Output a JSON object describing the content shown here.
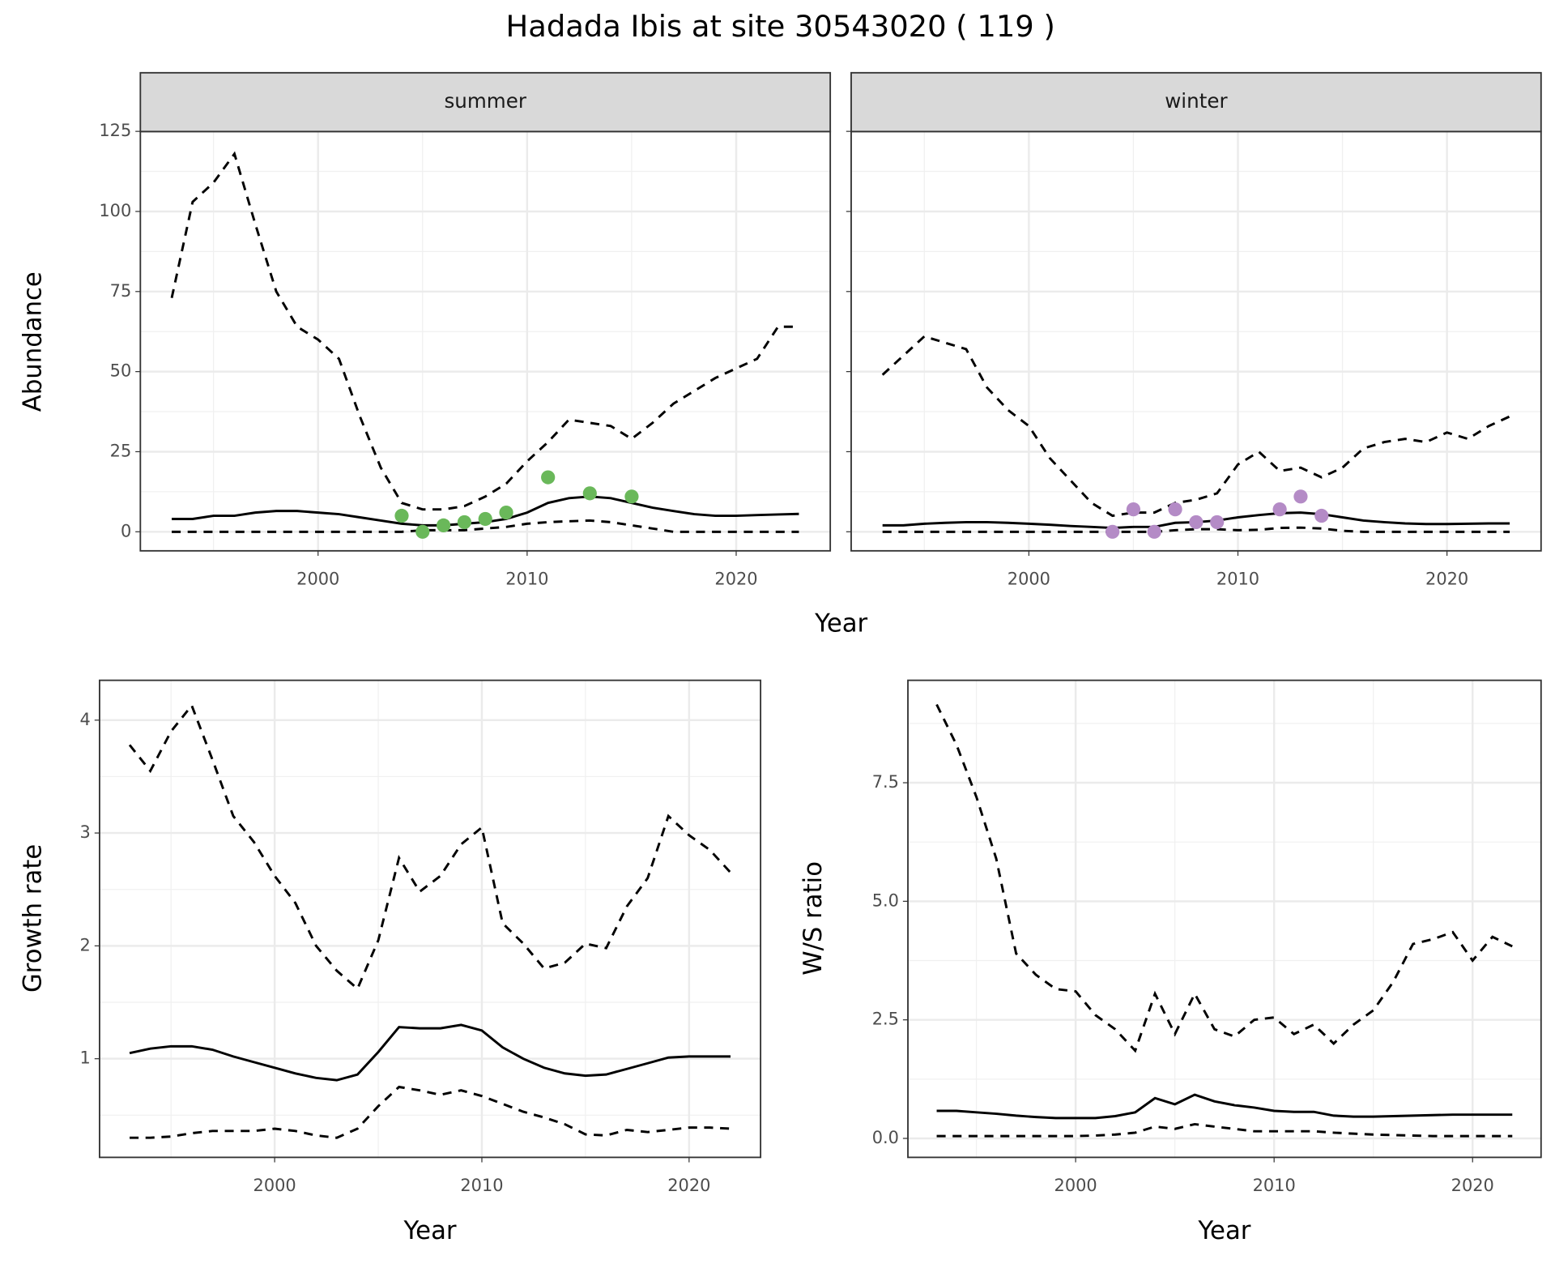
{
  "title": "Hadada Ibis at site 30543020 ( 119 )",
  "chart_data": [
    {
      "type": "line",
      "strip": "summer",
      "xlabel": "Year",
      "ylabel": "Abundance",
      "x": [
        1993,
        1994,
        1995,
        1996,
        1997,
        1998,
        1999,
        2000,
        2001,
        2002,
        2003,
        2004,
        2005,
        2006,
        2007,
        2008,
        2009,
        2010,
        2011,
        2012,
        2013,
        2014,
        2015,
        2016,
        2017,
        2018,
        2019,
        2020,
        2021,
        2022,
        2023
      ],
      "xlim": [
        1991.5,
        2024.5
      ],
      "xticks": [
        2000,
        2010,
        2020
      ],
      "xminor": [
        1995,
        2005,
        2015
      ],
      "ylim": [
        -5.95,
        124.95
      ],
      "yticks": [
        0,
        25,
        50,
        75,
        100,
        125
      ],
      "yminor": [
        12.5,
        37.5,
        62.5,
        87.5,
        112.5
      ],
      "grid": true,
      "show_ytick_labels": true,
      "series": [
        {
          "color": "#000000",
          "dash": true,
          "values": [
            73,
            103,
            109,
            118,
            96,
            75,
            64,
            60,
            54,
            36,
            20,
            9,
            7,
            7,
            8,
            11,
            15,
            22,
            28,
            35,
            34,
            33,
            29,
            34,
            40,
            44,
            48,
            51,
            54,
            64,
            64
          ]
        },
        {
          "color": "#000000",
          "values": [
            4,
            4,
            5,
            5,
            6,
            6.5,
            6.5,
            6,
            5.5,
            4.5,
            3.5,
            2.5,
            2,
            2,
            2.5,
            3,
            4,
            6,
            9,
            10.5,
            11,
            10.5,
            9,
            7.5,
            6.5,
            5.5,
            5,
            5,
            5.2,
            5.4,
            5.6
          ]
        },
        {
          "color": "#000000",
          "dash": true,
          "values": [
            0,
            0,
            0,
            0,
            0,
            0,
            0,
            0,
            0,
            0,
            0,
            0,
            0.5,
            0.5,
            0.5,
            1,
            1.5,
            2.5,
            3,
            3.3,
            3.5,
            3,
            2,
            1,
            0,
            0,
            0,
            0,
            0,
            0,
            0
          ]
        },
        {
          "color": "#6ab85a",
          "mode": "points",
          "values": [
            null,
            null,
            null,
            null,
            null,
            null,
            null,
            null,
            null,
            null,
            null,
            5,
            0,
            2,
            3,
            4,
            6,
            null,
            17,
            null,
            12,
            null,
            11,
            null,
            null,
            null,
            null,
            null,
            null,
            null,
            null
          ]
        }
      ]
    },
    {
      "type": "line",
      "strip": "winter",
      "x": [
        1993,
        1994,
        1995,
        1996,
        1997,
        1998,
        1999,
        2000,
        2001,
        2002,
        2003,
        2004,
        2005,
        2006,
        2007,
        2008,
        2009,
        2010,
        2011,
        2012,
        2013,
        2014,
        2015,
        2016,
        2017,
        2018,
        2019,
        2020,
        2021,
        2022,
        2023
      ],
      "xlim": [
        1991.5,
        2024.5
      ],
      "xticks": [
        2000,
        2010,
        2020
      ],
      "xminor": [
        1995,
        2005,
        2015
      ],
      "ylim": [
        -5.95,
        124.95
      ],
      "yticks": [
        0,
        25,
        50,
        75,
        100,
        125
      ],
      "yminor": [
        12.5,
        37.5,
        62.5,
        87.5,
        112.5
      ],
      "grid": true,
      "show_ytick_labels": false,
      "series": [
        {
          "color": "#000000",
          "dash": true,
          "values": [
            49,
            55,
            61,
            59,
            57,
            45,
            38,
            33,
            23,
            16,
            9,
            5,
            6,
            6,
            9,
            10,
            12,
            21,
            25,
            19,
            20,
            17,
            20,
            26,
            28,
            29,
            28,
            31,
            29,
            33,
            36
          ]
        },
        {
          "color": "#000000",
          "values": [
            2,
            2,
            2.5,
            2.8,
            3,
            3,
            2.8,
            2.5,
            2.2,
            1.8,
            1.5,
            1.2,
            1.5,
            1.5,
            2.8,
            3,
            3.5,
            4.5,
            5.2,
            5.8,
            6,
            5.5,
            4.5,
            3.5,
            3,
            2.6,
            2.4,
            2.4,
            2.5,
            2.6,
            2.6
          ]
        },
        {
          "color": "#000000",
          "dash": true,
          "values": [
            0,
            0,
            0,
            0,
            0,
            0,
            0,
            0,
            0,
            0,
            0,
            0,
            0,
            0,
            0.5,
            0.8,
            0.8,
            0.5,
            0.6,
            1.2,
            1.3,
            1,
            0.3,
            0,
            0,
            0,
            0,
            0,
            0,
            0,
            0
          ]
        },
        {
          "color": "#b48bc6",
          "mode": "points",
          "values": [
            null,
            null,
            null,
            null,
            null,
            null,
            null,
            null,
            null,
            null,
            null,
            0,
            7,
            0,
            7,
            3,
            3,
            null,
            null,
            7,
            11,
            5,
            null,
            null,
            null,
            null,
            null,
            null,
            null,
            null,
            null
          ]
        }
      ]
    },
    {
      "type": "line",
      "xlabel": "Year",
      "ylabel": "Growth rate",
      "x": [
        1993,
        1994,
        1995,
        1996,
        1997,
        1998,
        1999,
        2000,
        2001,
        2002,
        2003,
        2004,
        2005,
        2006,
        2007,
        2008,
        2009,
        2010,
        2011,
        2012,
        2013,
        2014,
        2015,
        2016,
        2017,
        2018,
        2019,
        2020,
        2021,
        2022
      ],
      "xlim": [
        1991.55,
        2023.45
      ],
      "xticks": [
        2000,
        2010,
        2020
      ],
      "xminor": [
        1995,
        2005,
        2015
      ],
      "ylim": [
        0.126,
        4.353
      ],
      "yticks": [
        1,
        2,
        3,
        4
      ],
      "yminor": [
        0.5,
        1.5,
        2.5,
        3.5
      ],
      "grid": true,
      "show_ytick_labels": true,
      "series": [
        {
          "color": "#000000",
          "dash": true,
          "values": [
            3.78,
            3.55,
            3.9,
            4.13,
            3.65,
            3.15,
            2.92,
            2.62,
            2.38,
            2.0,
            1.78,
            1.62,
            2.05,
            2.78,
            2.48,
            2.62,
            2.9,
            3.05,
            2.2,
            2.02,
            1.8,
            1.85,
            2.02,
            1.98,
            2.35,
            2.6,
            3.15,
            2.98,
            2.85,
            2.65
          ]
        },
        {
          "color": "#000000",
          "values": [
            1.05,
            1.09,
            1.11,
            1.11,
            1.08,
            1.02,
            0.97,
            0.92,
            0.87,
            0.83,
            0.81,
            0.86,
            1.06,
            1.28,
            1.27,
            1.27,
            1.3,
            1.25,
            1.1,
            1.0,
            0.92,
            0.87,
            0.85,
            0.86,
            0.91,
            0.96,
            1.01,
            1.02,
            1.02,
            1.02
          ]
        },
        {
          "color": "#000000",
          "dash": true,
          "values": [
            0.3,
            0.3,
            0.31,
            0.34,
            0.36,
            0.36,
            0.36,
            0.38,
            0.36,
            0.32,
            0.3,
            0.38,
            0.58,
            0.75,
            0.72,
            0.68,
            0.72,
            0.67,
            0.6,
            0.53,
            0.48,
            0.42,
            0.33,
            0.32,
            0.37,
            0.35,
            0.37,
            0.39,
            0.39,
            0.38
          ]
        }
      ]
    },
    {
      "type": "line",
      "xlabel": "Year",
      "ylabel": "W/S ratio",
      "x": [
        1993,
        1994,
        1995,
        1996,
        1997,
        1998,
        1999,
        2000,
        2001,
        2002,
        2003,
        2004,
        2005,
        2006,
        2007,
        2008,
        2009,
        2010,
        2011,
        2012,
        2013,
        2014,
        2015,
        2016,
        2017,
        2018,
        2019,
        2020,
        2021,
        2022
      ],
      "xlim": [
        1991.55,
        2023.45
      ],
      "xticks": [
        2000,
        2010,
        2020
      ],
      "xminor": [
        1995,
        2005,
        2015
      ],
      "ylim": [
        -0.4,
        9.66
      ],
      "yticks": [
        {
          "value": 0,
          "label": "0.0"
        },
        2.5,
        {
          "value": 5,
          "label": "5.0"
        },
        7.5
      ],
      "yminor": [
        1.25,
        3.75,
        6.25,
        8.75
      ],
      "grid": true,
      "show_ytick_labels": true,
      "series": [
        {
          "color": "#000000",
          "dash": true,
          "values": [
            9.15,
            8.3,
            7.2,
            5.9,
            3.9,
            3.45,
            3.15,
            3.1,
            2.6,
            2.3,
            1.85,
            3.05,
            2.2,
            3.05,
            2.3,
            2.15,
            2.5,
            2.55,
            2.2,
            2.4,
            2.0,
            2.4,
            2.7,
            3.3,
            4.1,
            4.2,
            4.35,
            3.75,
            4.25,
            4.05
          ]
        },
        {
          "color": "#000000",
          "values": [
            0.58,
            0.58,
            0.55,
            0.52,
            0.48,
            0.45,
            0.43,
            0.43,
            0.43,
            0.47,
            0.55,
            0.85,
            0.72,
            0.92,
            0.78,
            0.7,
            0.65,
            0.58,
            0.56,
            0.56,
            0.48,
            0.46,
            0.46,
            0.47,
            0.48,
            0.49,
            0.5,
            0.5,
            0.5,
            0.5
          ]
        },
        {
          "color": "#000000",
          "dash": true,
          "values": [
            0.05,
            0.05,
            0.05,
            0.05,
            0.05,
            0.05,
            0.05,
            0.05,
            0.06,
            0.08,
            0.12,
            0.25,
            0.2,
            0.3,
            0.25,
            0.2,
            0.15,
            0.15,
            0.15,
            0.15,
            0.12,
            0.1,
            0.08,
            0.07,
            0.06,
            0.05,
            0.05,
            0.05,
            0.05,
            0.05
          ]
        }
      ]
    }
  ]
}
